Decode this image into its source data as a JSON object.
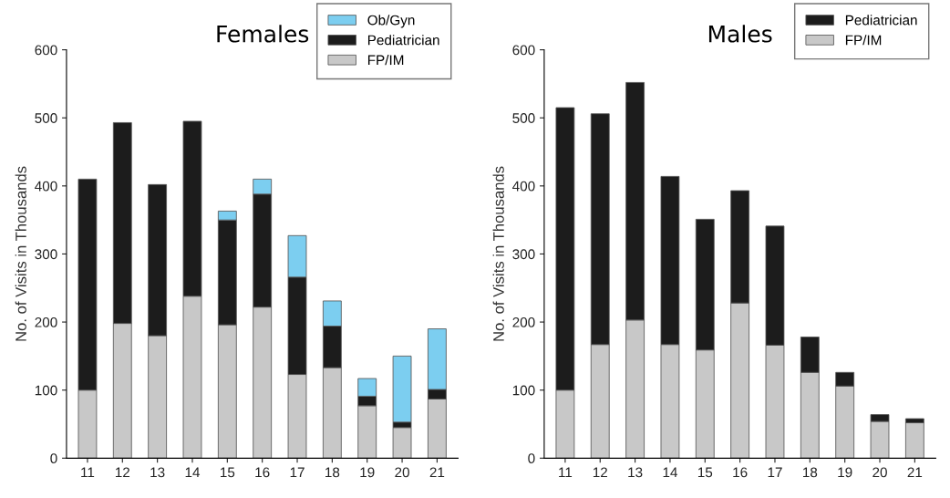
{
  "chart_data": [
    {
      "type": "bar",
      "title": "Females",
      "ylabel": "No. of Visits in Thousands",
      "stacked": true,
      "legend": "top right",
      "grid": false,
      "categories": [
        "11",
        "12",
        "13",
        "14",
        "15",
        "16",
        "17",
        "18",
        "19",
        "20",
        "21"
      ],
      "ylim": [
        0,
        600
      ],
      "yticks": [
        0,
        100,
        200,
        300,
        400,
        500,
        600
      ],
      "series": [
        {
          "name": "FP/IM",
          "color": "#c8c8c8",
          "values": [
            100,
            198,
            180,
            238,
            196,
            222,
            123,
            133,
            77,
            45,
            87
          ]
        },
        {
          "name": "Pediatrician",
          "color": "#1c1c1c",
          "values": [
            310,
            295,
            222,
            257,
            154,
            166,
            143,
            61,
            14,
            8,
            14
          ]
        },
        {
          "name": "Ob/Gyn",
          "color": "#7ccef0",
          "values": [
            null,
            null,
            null,
            null,
            13,
            22,
            61,
            37,
            26,
            97,
            89
          ]
        }
      ]
    },
    {
      "type": "bar",
      "title": "Males",
      "ylabel": "No. of Visits in Thousands",
      "stacked": true,
      "legend": "top right",
      "grid": false,
      "categories": [
        "11",
        "12",
        "13",
        "14",
        "15",
        "16",
        "17",
        "18",
        "19",
        "20",
        "21"
      ],
      "ylim": [
        0,
        600
      ],
      "yticks": [
        0,
        100,
        200,
        300,
        400,
        500,
        600
      ],
      "series": [
        {
          "name": "FP/IM",
          "color": "#c8c8c8",
          "values": [
            100,
            167,
            203,
            167,
            159,
            228,
            166,
            126,
            106,
            54,
            52
          ]
        },
        {
          "name": "Pediatrician",
          "color": "#1c1c1c",
          "values": [
            415,
            339,
            349,
            247,
            192,
            165,
            175,
            52,
            20,
            10,
            6
          ]
        }
      ]
    }
  ]
}
